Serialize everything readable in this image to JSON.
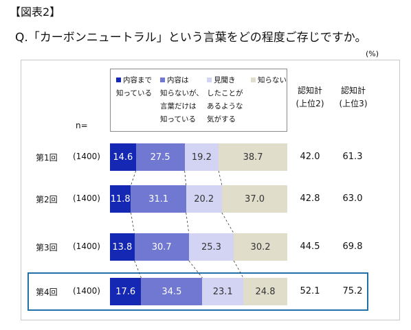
{
  "figure_label": "【図表2】",
  "question": "Q.「カーボンニュートラル」という言葉をどの程度ご存じですか。",
  "unit": "(%)",
  "n_label": "n=",
  "legend": [
    {
      "label": "内容まで\n知っている",
      "color": "#1428b4"
    },
    {
      "label": "内容は\n知らないが、\n言葉だけは\n知っている",
      "color": "#7178d2"
    },
    {
      "label": "見聞き\nしたことが\nあるような\n気がする",
      "color": "#d3d3f4"
    },
    {
      "label": "知らない",
      "color": "#e0ddcb"
    }
  ],
  "columns": {
    "aware2": "認知計\n(上位2)",
    "aware3": "認知計\n(上位3)"
  },
  "chart_data": {
    "type": "bar",
    "stacked": true,
    "orientation": "horizontal",
    "categories": [
      "第1回",
      "第2回",
      "第3回",
      "第4回"
    ],
    "n": [
      "(1400)",
      "(1400)",
      "(1400)",
      "(1400)"
    ],
    "series": [
      {
        "name": "内容まで知っている",
        "values": [
          14.6,
          11.8,
          13.8,
          17.6
        ]
      },
      {
        "name": "内容は知らないが、言葉だけは知っている",
        "values": [
          27.5,
          31.1,
          30.7,
          34.5
        ]
      },
      {
        "name": "見聞きしたことがあるような気がする",
        "values": [
          19.2,
          20.2,
          25.3,
          23.1
        ]
      },
      {
        "name": "知らない",
        "values": [
          38.7,
          37.0,
          30.2,
          24.8
        ]
      }
    ],
    "aware_top2": [
      42.0,
      42.8,
      44.5,
      52.1
    ],
    "aware_top3": [
      61.3,
      63.0,
      69.8,
      75.2
    ],
    "xlim": [
      0,
      100
    ],
    "highlighted_category": "第4回"
  }
}
